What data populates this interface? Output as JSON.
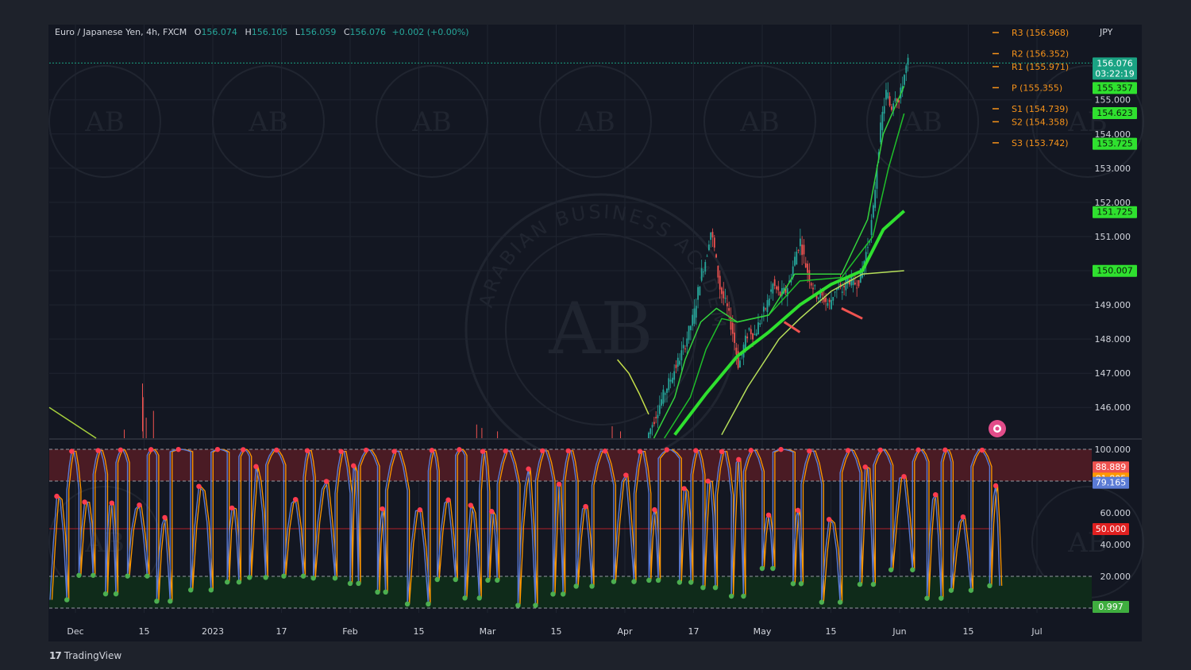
{
  "header": {
    "symbol": "Euro / Japanese Yen, 4h, FXCM",
    "o_label": "O",
    "o_value": "156.074",
    "h_label": "H",
    "h_value": "156.105",
    "l_label": "L",
    "l_value": "156.059",
    "c_label": "C",
    "c_value": "156.076",
    "change": "+0.002 (+0.00%)"
  },
  "currency": "JPY",
  "branding": {
    "platform": "TradingView"
  },
  "watermark": {
    "text": "ARABIAN BUSINESS ACADEMY",
    "initials": "AB"
  },
  "colors": {
    "bg": "#131722",
    "up": "#26a69a",
    "down": "#ef5350",
    "ma_green": "#2fe02f",
    "pivot": "#f7931a",
    "stoch_blue": "#5b7bd5",
    "stoch_orange": "#ff9800",
    "overbought_fill": "#4a1b24",
    "oversold_fill": "#0f2b1a"
  },
  "chart_data": [
    {
      "type": "candlestick",
      "title": "Euro / Japanese Yen, 4h, FXCM",
      "ylim": [
        145.1,
        157.2
      ],
      "y_ticks": [
        146,
        147,
        148,
        149,
        150,
        151,
        152,
        153,
        154,
        155
      ],
      "y_tick_labels": [
        "146.000",
        "147.000",
        "148.000",
        "149.000",
        "150.000",
        "151.000",
        "152.000",
        "153.000",
        "154.000",
        "155.000"
      ],
      "pivots": [
        {
          "label": "R3 (156.968)",
          "value": 156.968
        },
        {
          "label": "R2 (156.352)",
          "value": 156.352
        },
        {
          "label": "R1 (155.971)",
          "value": 155.971
        },
        {
          "label": "P (155.355)",
          "value": 155.355
        },
        {
          "label": "S1 (154.739)",
          "value": 154.739
        },
        {
          "label": "S2 (154.358)",
          "value": 154.358
        },
        {
          "label": "S3 (153.742)",
          "value": 153.742
        }
      ],
      "price_badges": [
        {
          "value": 156.076,
          "label": "156.076",
          "sub": "03:22:19",
          "color": "#1aa383"
        },
        {
          "value": 155.357,
          "label": "155.357",
          "color": "#2fe02f"
        },
        {
          "value": 154.623,
          "label": "154.623",
          "color": "#2fe02f"
        },
        {
          "value": 153.725,
          "label": "153.725",
          "color": "#2fe02f"
        },
        {
          "value": 151.725,
          "label": "151.725",
          "color": "#2fe02f"
        },
        {
          "value": 150.007,
          "label": "150.007",
          "color": "#2fe02f"
        }
      ],
      "x_ticks": [
        "Dec",
        "15",
        "2023",
        "17",
        "Feb",
        "15",
        "Mar",
        "15",
        "Apr",
        "17",
        "May",
        "15",
        "Jun",
        "15",
        "Jul"
      ],
      "price_path": [
        [
          0.575,
          145.1
        ],
        [
          0.59,
          146.3
        ],
        [
          0.6,
          147.0
        ],
        [
          0.61,
          147.7
        ],
        [
          0.615,
          148.2
        ],
        [
          0.62,
          148.7
        ],
        [
          0.627,
          149.9
        ],
        [
          0.632,
          150.4
        ],
        [
          0.636,
          151.2
        ],
        [
          0.64,
          150.6
        ],
        [
          0.645,
          149.5
        ],
        [
          0.652,
          148.9
        ],
        [
          0.658,
          148.1
        ],
        [
          0.663,
          147.2
        ],
        [
          0.668,
          147.8
        ],
        [
          0.673,
          148.3
        ],
        [
          0.678,
          148.1
        ],
        [
          0.683,
          148.5
        ],
        [
          0.69,
          149.0
        ],
        [
          0.696,
          149.6
        ],
        [
          0.702,
          149.3
        ],
        [
          0.708,
          149.4
        ],
        [
          0.712,
          149.7
        ],
        [
          0.718,
          150.5
        ],
        [
          0.722,
          150.9
        ],
        [
          0.727,
          150.2
        ],
        [
          0.732,
          149.7
        ],
        [
          0.738,
          149.3
        ],
        [
          0.744,
          149.2
        ],
        [
          0.75,
          149.0
        ],
        [
          0.756,
          149.5
        ],
        [
          0.762,
          149.4
        ],
        [
          0.768,
          149.8
        ],
        [
          0.773,
          149.6
        ],
        [
          0.778,
          149.7
        ],
        [
          0.782,
          150.1
        ],
        [
          0.788,
          150.9
        ],
        [
          0.792,
          151.7
        ],
        [
          0.796,
          153.2
        ],
        [
          0.8,
          154.4
        ],
        [
          0.805,
          155.3
        ],
        [
          0.809,
          154.7
        ],
        [
          0.813,
          155.2
        ],
        [
          0.817,
          154.9
        ],
        [
          0.82,
          155.5
        ],
        [
          0.825,
          156.1
        ]
      ],
      "mas": [
        [
          [
            0.545,
            147.4
          ],
          [
            0.556,
            147.0
          ],
          [
            0.566,
            146.4
          ],
          [
            0.575,
            145.8
          ]
        ],
        [
          [
            0.6,
            145.2
          ],
          [
            0.63,
            146.4
          ],
          [
            0.66,
            147.5
          ],
          [
            0.69,
            148.2
          ],
          [
            0.72,
            149.0
          ],
          [
            0.75,
            149.6
          ],
          [
            0.78,
            150.0
          ],
          [
            0.8,
            151.2
          ],
          [
            0.82,
            151.75
          ]
        ],
        [
          [
            0.645,
            145.2
          ],
          [
            0.67,
            146.6
          ],
          [
            0.7,
            148.0
          ],
          [
            0.72,
            148.6
          ],
          [
            0.75,
            149.4
          ],
          [
            0.78,
            149.9
          ],
          [
            0.82,
            150.0
          ]
        ],
        [
          [
            0.59,
            145.1
          ],
          [
            0.615,
            146.3
          ],
          [
            0.63,
            147.7
          ],
          [
            0.645,
            148.6
          ],
          [
            0.66,
            148.5
          ],
          [
            0.69,
            148.7
          ],
          [
            0.72,
            149.7
          ],
          [
            0.76,
            149.8
          ],
          [
            0.79,
            151.0
          ],
          [
            0.805,
            153.0
          ],
          [
            0.82,
            154.6
          ]
        ],
        [
          [
            0.58,
            145.1
          ],
          [
            0.6,
            146.3
          ],
          [
            0.61,
            147.4
          ],
          [
            0.625,
            148.5
          ],
          [
            0.64,
            148.9
          ],
          [
            0.66,
            148.5
          ],
          [
            0.69,
            148.7
          ],
          [
            0.715,
            149.9
          ],
          [
            0.76,
            149.9
          ],
          [
            0.785,
            151.5
          ],
          [
            0.8,
            154.0
          ],
          [
            0.82,
            155.4
          ]
        ]
      ]
    },
    {
      "type": "line",
      "ylim": [
        -3,
        103
      ],
      "y_ticks": [
        20,
        40,
        60,
        100
      ],
      "y_tick_labels": [
        "20.000",
        "40.000",
        "60.000",
        "100.000"
      ],
      "levels": [
        100,
        80,
        50,
        20,
        0
      ],
      "value_badges": [
        {
          "value": 88.889,
          "label": "88.889",
          "color": "#ef5350"
        },
        {
          "value": 81.805,
          "label": "81.805",
          "color": "#ff9800"
        },
        {
          "value": 79.165,
          "label": "79.165",
          "color": "#5b7bd5"
        },
        {
          "value": 50.0,
          "label": "50.000",
          "color": "#e02020"
        },
        {
          "value": 0.997,
          "label": "0.997",
          "color": "#3fae3f"
        }
      ]
    }
  ]
}
